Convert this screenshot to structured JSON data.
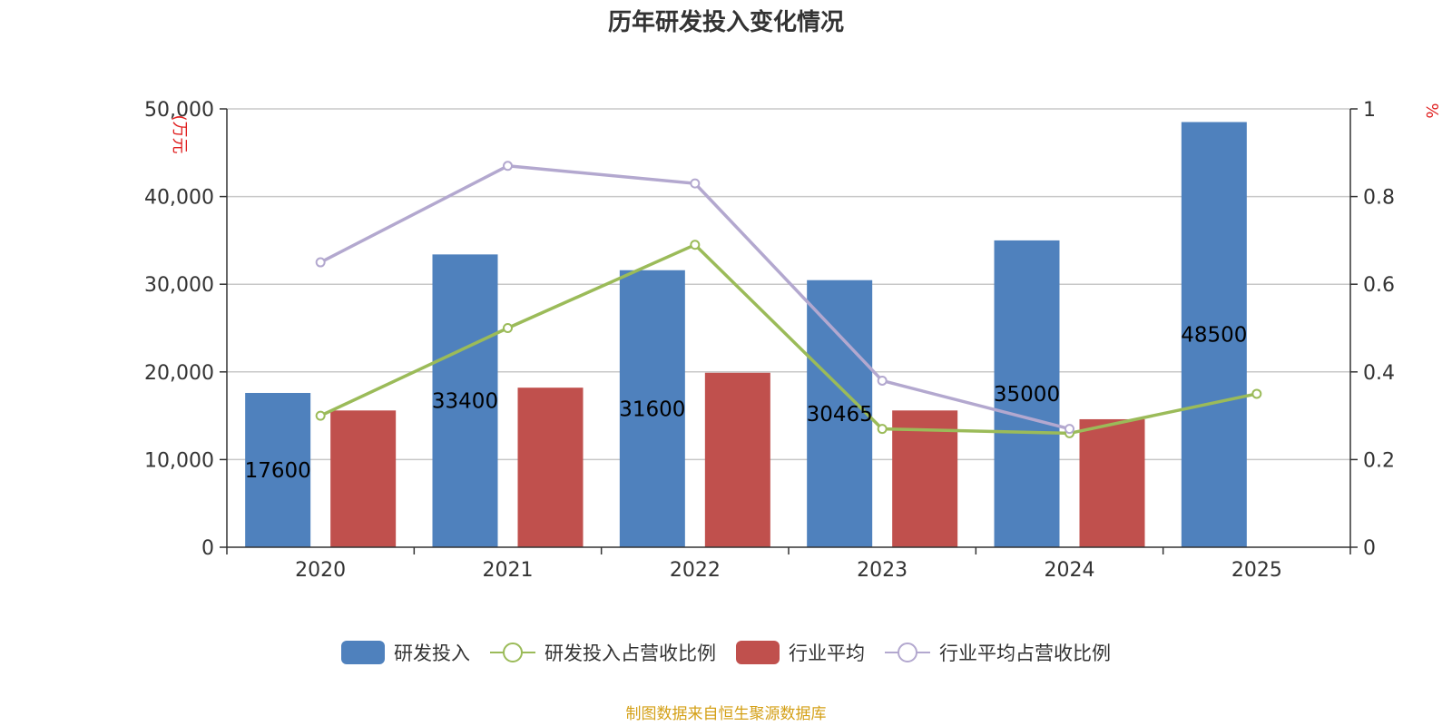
{
  "chart_data": {
    "type": "bar",
    "title": "历年研发投入变化情况",
    "categories": [
      "2020",
      "2021",
      "2022",
      "2023",
      "2024",
      "2025"
    ],
    "y_left": {
      "unit_label": "(万元",
      "ylim": [
        0,
        50000
      ],
      "ticks": [
        "0",
        "10,000",
        "20,000",
        "30,000",
        "40,000",
        "50,000"
      ],
      "tick_values": [
        0,
        10000,
        20000,
        30000,
        40000,
        50000
      ]
    },
    "y_right": {
      "unit_label": "%",
      "ylim": [
        0,
        1
      ],
      "ticks": [
        "0",
        "0.2",
        "0.4",
        "0.6",
        "0.8",
        "1"
      ],
      "tick_values": [
        0,
        0.2,
        0.4,
        0.6,
        0.8,
        1
      ]
    },
    "series": [
      {
        "name": "研发投入",
        "kind": "bar",
        "axis": "left",
        "color": "#4f81bd",
        "values": [
          17600,
          33400,
          31600,
          30465,
          35000,
          48500
        ],
        "labels": [
          "17600",
          "33400",
          "31600",
          "30465",
          "35000",
          "48500"
        ]
      },
      {
        "name": "行业平均",
        "kind": "bar",
        "axis": "left",
        "color": "#c0504d",
        "values": [
          15600,
          18200,
          19900,
          15600,
          14600,
          null
        ]
      },
      {
        "name": "研发投入占营收比例",
        "kind": "line",
        "axis": "right",
        "color": "#9bbb59",
        "values": [
          0.3,
          0.5,
          0.69,
          0.27,
          0.26,
          0.35
        ]
      },
      {
        "name": "行业平均占营收比例",
        "kind": "line",
        "axis": "right",
        "color": "#b3a8cf",
        "values": [
          0.65,
          0.87,
          0.83,
          0.38,
          0.27,
          null
        ]
      }
    ],
    "legend_order": [
      "研发投入",
      "研发投入占营收比例",
      "行业平均",
      "行业平均占营收比例"
    ],
    "grid": true,
    "legend_position": "bottom"
  },
  "footer": "制图数据来自恒生聚源数据库"
}
